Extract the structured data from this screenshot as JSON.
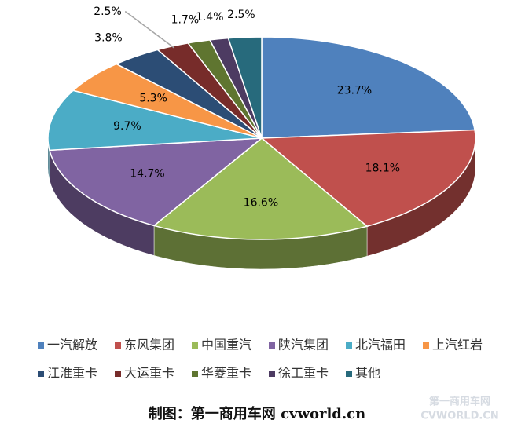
{
  "chart_data": {
    "type": "pie3d",
    "categories": [
      "一汽解放",
      "东风集团",
      "中国重汽",
      "陕汽集团",
      "北汽福田",
      "上汽红岩",
      "江淮重卡",
      "大运重卡",
      "华菱重卡",
      "徐工重卡",
      "其他"
    ],
    "values": [
      23.7,
      18.1,
      16.6,
      14.7,
      9.7,
      5.3,
      3.8,
      2.5,
      1.7,
      1.4,
      2.5
    ],
    "value_labels": [
      "23.7%",
      "18.1%",
      "16.6%",
      "14.7%",
      "9.7%",
      "5.3%",
      "3.8%",
      "2.5%",
      "1.7%",
      "1.4%",
      "2.5%"
    ],
    "colors": [
      "#4f81bd",
      "#c0504d",
      "#9bbb59",
      "#8064a2",
      "#4bacc6",
      "#f79646",
      "#2c4d75",
      "#772c2a",
      "#5f7530",
      "#4d3b62",
      "#276a7c"
    ],
    "legend": "bottom",
    "caption": "制图：第一商用车网 cvworld.cn",
    "watermark": {
      "name": "第一商用车网",
      "url": "CVWORLD.CN"
    }
  }
}
